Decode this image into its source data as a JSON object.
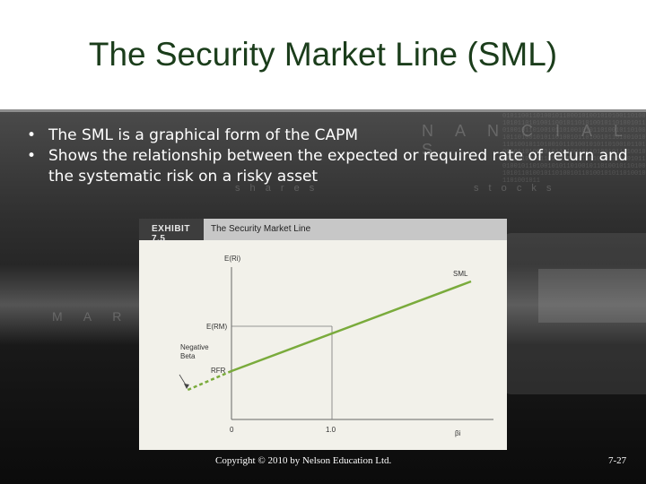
{
  "slide": {
    "title": "The Security Market Line (SML)",
    "bullets": [
      "The SML is a graphical form of the CAPM",
      "Shows the relationship between the expected or required rate of return and the systematic risk on a risky asset"
    ],
    "copyright": "Copyright © 2010 by Nelson Education Ltd.",
    "page_number": "7-27"
  },
  "background": {
    "words": [
      "N A N C I A L S",
      "M A R K E T S",
      "s h a r e s",
      "s t o c k s"
    ]
  },
  "exhibit": {
    "label": "EXHIBIT 7.5",
    "title": "The Security Market Line",
    "y_axis_label": "E(Ri)",
    "x_axis_label": "βi",
    "sml_label": "SML",
    "market_return_label": "E(RM)",
    "rfr_label": "RFR",
    "negative_beta_label": [
      "Negative",
      "Beta"
    ],
    "x_tick_labels": [
      "0",
      "1.0"
    ],
    "line_color": "#7aab3c"
  }
}
